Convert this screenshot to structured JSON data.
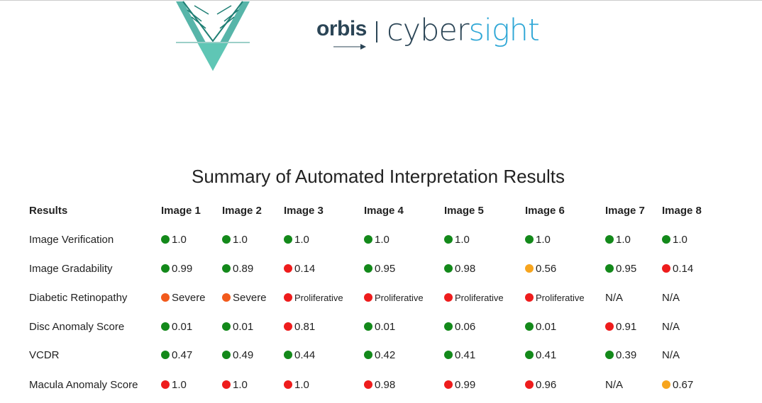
{
  "brand": {
    "left": "orbis",
    "right": [
      "cyber",
      "sight"
    ]
  },
  "title": "Summary of Automated Interpretation Results",
  "table": {
    "headers": [
      "Results",
      "Image 1",
      "Image 2",
      "Image 3",
      "Image 4",
      "Image 5",
      "Image 6",
      "Image 7",
      "Image 8"
    ],
    "rows": [
      {
        "label": "Image Verification",
        "cells": [
          {
            "text": "1.0",
            "color": "#13891a"
          },
          {
            "text": "1.0",
            "color": "#13891a"
          },
          {
            "text": "1.0",
            "color": "#13891a"
          },
          {
            "text": "1.0",
            "color": "#13891a"
          },
          {
            "text": "1.0",
            "color": "#13891a"
          },
          {
            "text": "1.0",
            "color": "#13891a"
          },
          {
            "text": "1.0",
            "color": "#13891a"
          },
          {
            "text": "1.0",
            "color": "#13891a"
          }
        ]
      },
      {
        "label": "Image Gradability",
        "cells": [
          {
            "text": "0.99",
            "color": "#13891a"
          },
          {
            "text": "0.89",
            "color": "#13891a"
          },
          {
            "text": "0.14",
            "color": "#ee1c1c"
          },
          {
            "text": "0.95",
            "color": "#13891a"
          },
          {
            "text": "0.98",
            "color": "#13891a"
          },
          {
            "text": "0.56",
            "color": "#f7a51e"
          },
          {
            "text": "0.95",
            "color": "#13891a"
          },
          {
            "text": "0.14",
            "color": "#ee1c1c"
          }
        ]
      },
      {
        "label": "Diabetic Retinopathy",
        "cells": [
          {
            "text": "Severe",
            "color": "#f25a1c"
          },
          {
            "text": "Severe",
            "color": "#f25a1c"
          },
          {
            "text": "Proliferative",
            "color": "#ee1c1c"
          },
          {
            "text": "Proliferative",
            "color": "#ee1c1c"
          },
          {
            "text": "Proliferative",
            "color": "#ee1c1c"
          },
          {
            "text": "Proliferative",
            "color": "#ee1c1c"
          },
          {
            "text": "N/A"
          },
          {
            "text": "N/A"
          }
        ]
      },
      {
        "label": "Disc Anomaly Score",
        "cells": [
          {
            "text": "0.01",
            "color": "#13891a"
          },
          {
            "text": "0.01",
            "color": "#13891a"
          },
          {
            "text": "0.81",
            "color": "#ee1c1c"
          },
          {
            "text": "0.01",
            "color": "#13891a"
          },
          {
            "text": "0.06",
            "color": "#13891a"
          },
          {
            "text": "0.01",
            "color": "#13891a"
          },
          {
            "text": "0.91",
            "color": "#ee1c1c"
          },
          {
            "text": "N/A"
          }
        ]
      },
      {
        "label": "VCDR",
        "cells": [
          {
            "text": "0.47",
            "color": "#13891a"
          },
          {
            "text": "0.49",
            "color": "#13891a"
          },
          {
            "text": "0.44",
            "color": "#13891a"
          },
          {
            "text": "0.42",
            "color": "#13891a"
          },
          {
            "text": "0.41",
            "color": "#13891a"
          },
          {
            "text": "0.41",
            "color": "#13891a"
          },
          {
            "text": "0.39",
            "color": "#13891a"
          },
          {
            "text": "N/A"
          }
        ]
      },
      {
        "label": "Macula Anomaly Score",
        "cells": [
          {
            "text": "1.0",
            "color": "#ee1c1c"
          },
          {
            "text": "1.0",
            "color": "#ee1c1c"
          },
          {
            "text": "1.0",
            "color": "#ee1c1c"
          },
          {
            "text": "0.98",
            "color": "#ee1c1c"
          },
          {
            "text": "0.99",
            "color": "#ee1c1c"
          },
          {
            "text": "0.96",
            "color": "#ee1c1c"
          },
          {
            "text": "N/A"
          },
          {
            "text": "0.67",
            "color": "#f7a51e"
          }
        ]
      }
    ]
  }
}
